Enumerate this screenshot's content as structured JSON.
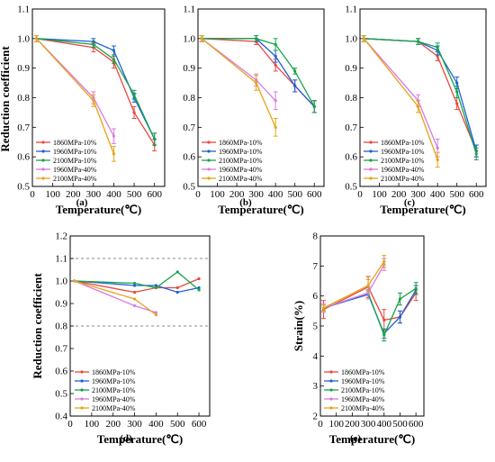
{
  "figure": {
    "series_colors": {
      "1860MPa-10%": "#e8473f",
      "1960MPa-10%": "#1f5fd6",
      "2100MPa-10%": "#18a34a",
      "1960MPa-40%": "#d97ae0",
      "2100MPa-40%": "#e6a317"
    }
  },
  "chart_data": [
    {
      "panel": "(a)",
      "type": "line",
      "xlabel": "Temperature(℃)",
      "ylabel": "Reduction coefficient",
      "xlim": [
        0,
        650
      ],
      "ylim": [
        0.5,
        1.1
      ],
      "xticks": [
        0,
        100,
        200,
        300,
        400,
        500,
        600
      ],
      "yticks": [
        0.5,
        0.6,
        0.7,
        0.8,
        0.9,
        1.0,
        1.1
      ],
      "legend_position": "bottom-left",
      "series": [
        {
          "name": "1860MPa-10%",
          "x": [
            20,
            300,
            400,
            500,
            600
          ],
          "y": [
            1.0,
            0.97,
            0.92,
            0.75,
            0.64
          ],
          "err": [
            0.01,
            0.015,
            0.02,
            0.02,
            0.02
          ]
        },
        {
          "name": "1960MPa-10%",
          "x": [
            20,
            300,
            400,
            500,
            600
          ],
          "y": [
            1.0,
            0.99,
            0.96,
            0.8,
            0.66
          ],
          "err": [
            0.01,
            0.01,
            0.015,
            0.015,
            0.02
          ]
        },
        {
          "name": "2100MPa-10%",
          "x": [
            20,
            300,
            400,
            500,
            600
          ],
          "y": [
            1.0,
            0.98,
            0.93,
            0.81,
            0.66
          ],
          "err": [
            0.01,
            0.01,
            0.015,
            0.015,
            0.02
          ]
        },
        {
          "name": "1960MPa-40%",
          "x": [
            20,
            300,
            400
          ],
          "y": [
            1.0,
            0.8,
            0.67
          ],
          "err": [
            0.01,
            0.02,
            0.025
          ]
        },
        {
          "name": "2100MPa-40%",
          "x": [
            20,
            300,
            400
          ],
          "y": [
            1.0,
            0.79,
            0.61
          ],
          "err": [
            0.01,
            0.02,
            0.025
          ]
        }
      ]
    },
    {
      "panel": "(b)",
      "type": "line",
      "xlabel": "Temperature(℃)",
      "ylabel": "",
      "xlim": [
        0,
        650
      ],
      "ylim": [
        0.5,
        1.1
      ],
      "xticks": [
        0,
        100,
        200,
        300,
        400,
        500,
        600
      ],
      "yticks": [
        0.5,
        0.6,
        0.7,
        0.8,
        0.9,
        1.0,
        1.1
      ],
      "legend_position": "bottom-left",
      "series": [
        {
          "name": "1860MPa-10%",
          "x": [
            20,
            300,
            400,
            500,
            600
          ],
          "y": [
            1.0,
            0.99,
            0.91,
            0.84,
            0.77
          ],
          "err": [
            0.01,
            0.01,
            0.02,
            0.02,
            0.02
          ]
        },
        {
          "name": "1960MPa-10%",
          "x": [
            20,
            300,
            400,
            500,
            600
          ],
          "y": [
            1.0,
            1.0,
            0.94,
            0.84,
            0.77
          ],
          "err": [
            0.01,
            0.01,
            0.02,
            0.02,
            0.02
          ]
        },
        {
          "name": "2100MPa-10%",
          "x": [
            20,
            300,
            400,
            500,
            600
          ],
          "y": [
            1.0,
            1.0,
            0.98,
            0.89,
            0.77
          ],
          "err": [
            0.01,
            0.01,
            0.02,
            0.01,
            0.02
          ]
        },
        {
          "name": "1960MPa-40%",
          "x": [
            20,
            300,
            400
          ],
          "y": [
            1.0,
            0.86,
            0.79
          ],
          "err": [
            0.01,
            0.02,
            0.03
          ]
        },
        {
          "name": "2100MPa-40%",
          "x": [
            20,
            300,
            400
          ],
          "y": [
            1.0,
            0.85,
            0.7
          ],
          "err": [
            0.01,
            0.025,
            0.03
          ]
        }
      ]
    },
    {
      "panel": "(c)",
      "type": "line",
      "xlabel": "Temperature(℃)",
      "ylabel": "",
      "xlim": [
        0,
        650
      ],
      "ylim": [
        0.5,
        1.1
      ],
      "xticks": [
        0,
        100,
        200,
        300,
        400,
        500,
        600
      ],
      "yticks": [
        0.5,
        0.6,
        0.7,
        0.8,
        0.9,
        1.0,
        1.1
      ],
      "legend_position": "bottom-left",
      "series": [
        {
          "name": "1860MPa-10%",
          "x": [
            20,
            300,
            400,
            500,
            600
          ],
          "y": [
            1.0,
            0.99,
            0.94,
            0.78,
            0.62
          ],
          "err": [
            0.01,
            0.01,
            0.015,
            0.02,
            0.02
          ]
        },
        {
          "name": "1960MPa-10%",
          "x": [
            20,
            300,
            400,
            500,
            600
          ],
          "y": [
            1.0,
            0.99,
            0.96,
            0.85,
            0.62
          ],
          "err": [
            0.01,
            0.01,
            0.015,
            0.02,
            0.02
          ]
        },
        {
          "name": "2100MPa-10%",
          "x": [
            20,
            300,
            400,
            500,
            600
          ],
          "y": [
            1.0,
            0.99,
            0.97,
            0.82,
            0.61
          ],
          "err": [
            0.01,
            0.01,
            0.015,
            0.02,
            0.02
          ]
        },
        {
          "name": "1960MPa-40%",
          "x": [
            20,
            300,
            400
          ],
          "y": [
            1.0,
            0.79,
            0.63
          ],
          "err": [
            0.01,
            0.02,
            0.03
          ]
        },
        {
          "name": "2100MPa-40%",
          "x": [
            20,
            300,
            400
          ],
          "y": [
            1.0,
            0.77,
            0.59
          ],
          "err": [
            0.01,
            0.02,
            0.025
          ]
        }
      ]
    },
    {
      "panel": "(d)",
      "type": "line",
      "xlabel": "Temperature(℃)",
      "ylabel": "Reduction coefficient",
      "xlim": [
        0,
        650
      ],
      "ylim": [
        0.4,
        1.2
      ],
      "xticks": [
        0,
        100,
        200,
        300,
        400,
        500,
        600
      ],
      "yticks": [
        0.4,
        0.5,
        0.6,
        0.7,
        0.8,
        0.9,
        1.0,
        1.1,
        1.2
      ],
      "reference_lines": [
        0.8,
        1.1
      ],
      "legend_position": "bottom-left",
      "series": [
        {
          "name": "1860MPa-10%",
          "x": [
            20,
            300,
            400,
            500,
            600
          ],
          "y": [
            1.0,
            0.95,
            0.97,
            0.97,
            1.01
          ]
        },
        {
          "name": "1960MPa-10%",
          "x": [
            20,
            300,
            400,
            500,
            600
          ],
          "y": [
            1.0,
            0.98,
            0.98,
            0.95,
            0.97
          ]
        },
        {
          "name": "2100MPa-10%",
          "x": [
            20,
            300,
            400,
            500,
            600
          ],
          "y": [
            1.0,
            0.99,
            0.97,
            1.04,
            0.96
          ]
        },
        {
          "name": "1960MPa-40%",
          "x": [
            20,
            300,
            400
          ],
          "y": [
            1.0,
            0.89,
            0.86
          ]
        },
        {
          "name": "2100MPa-40%",
          "x": [
            20,
            300,
            400
          ],
          "y": [
            1.0,
            0.92,
            0.85
          ]
        }
      ]
    },
    {
      "panel": "(e)",
      "type": "line",
      "xlabel": "Temperature(℃)",
      "ylabel": "Strain(%)",
      "xlim": [
        0,
        650
      ],
      "ylim": [
        2,
        8
      ],
      "xticks": [
        0,
        100,
        200,
        300,
        400,
        500,
        600
      ],
      "yticks": [
        2,
        3,
        4,
        5,
        6,
        7,
        8
      ],
      "legend_position": "bottom-left",
      "series": [
        {
          "name": "1860MPa-10%",
          "x": [
            20,
            300,
            400,
            500,
            600
          ],
          "y": [
            5.55,
            6.3,
            5.2,
            5.3,
            6.1
          ],
          "err": [
            0.3,
            0.35,
            0.35,
            0.2,
            0.25
          ]
        },
        {
          "name": "1960MPa-10%",
          "x": [
            20,
            300,
            400,
            500,
            600
          ],
          "y": [
            5.6,
            6.05,
            4.75,
            5.3,
            6.2
          ],
          "err": [
            0.15,
            0.15,
            0.15,
            0.2,
            0.15
          ]
        },
        {
          "name": "2100MPa-10%",
          "x": [
            20,
            300,
            400,
            500,
            600
          ],
          "y": [
            5.6,
            6.1,
            4.7,
            5.9,
            6.25
          ],
          "err": [
            0.1,
            0.2,
            0.2,
            0.2,
            0.2
          ]
        },
        {
          "name": "1960MPa-40%",
          "x": [
            20,
            300,
            400
          ],
          "y": [
            5.6,
            6.1,
            7.05
          ],
          "err": [
            0.15,
            0.2,
            0.2
          ]
        },
        {
          "name": "2100MPa-40%",
          "x": [
            20,
            300,
            400
          ],
          "y": [
            5.6,
            6.35,
            7.15
          ],
          "err": [
            0.1,
            0.2,
            0.2
          ]
        }
      ]
    }
  ]
}
